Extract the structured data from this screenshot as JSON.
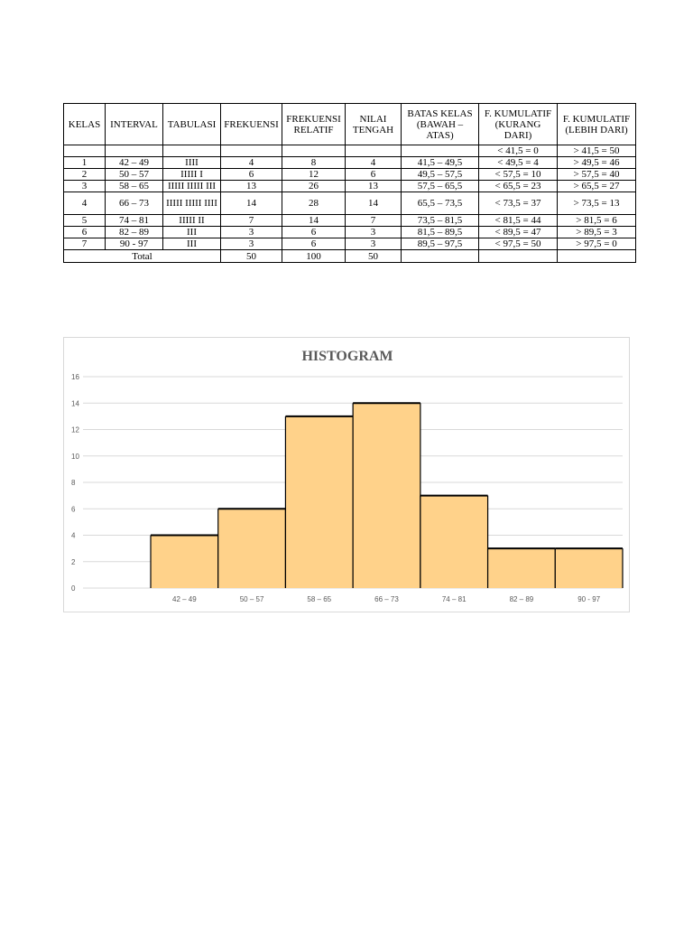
{
  "table": {
    "headers": [
      "KELAS",
      "INTERVAL",
      "TABULASI",
      "FREKUENSI",
      "FREKUENSI RELATIF",
      "NILAI TENGAH",
      "BATAS KELAS (BAWAH – ATAS)",
      "F. KUMULATIF (KURANG DARI)",
      "F. KUMULATIF (LEBIH DARI)"
    ],
    "pre_row": [
      "",
      "",
      "",
      "",
      "",
      "",
      "",
      "< 41,5 = 0",
      "> 41,5 = 50"
    ],
    "rows": [
      [
        "1",
        "42 – 49",
        "IIII",
        "4",
        "8",
        "4",
        "41,5 – 49,5",
        "< 49,5 = 4",
        "> 49,5 = 46"
      ],
      [
        "2",
        "50 – 57",
        "IIIII I",
        "6",
        "12",
        "6",
        "49,5 – 57,5",
        "< 57,5 = 10",
        "> 57,5 = 40"
      ],
      [
        "3",
        "58 – 65",
        "IIIII IIIII III",
        "13",
        "26",
        "13",
        "57,5 – 65,5",
        "< 65,5 = 23",
        "> 65,5 = 27"
      ],
      [
        "4",
        "66 – 73",
        "IIIII IIIII IIII",
        "14",
        "28",
        "14",
        "65,5 – 73,5",
        "< 73,5 = 37",
        "> 73,5 = 13"
      ],
      [
        "5",
        "74 – 81",
        "IIIII II",
        "7",
        "14",
        "7",
        "73,5 – 81,5",
        "< 81,5 = 44",
        "> 81,5 = 6"
      ],
      [
        "6",
        "82 – 89",
        "III",
        "3",
        "6",
        "3",
        "81,5 – 89,5",
        "< 89,5 = 47",
        "> 89,5 = 3"
      ],
      [
        "7",
        "90 - 97",
        "III",
        "3",
        "6",
        "3",
        "89,5 – 97,5",
        "< 97,5 = 50",
        "> 97,5 = 0"
      ]
    ],
    "total": {
      "label": "Total",
      "frekuensi": "50",
      "relatif": "100",
      "nilai_tengah": "50"
    }
  },
  "chart_data": {
    "type": "bar",
    "title": "HISTOGRAM",
    "categories": [
      "42 – 49",
      "50 – 57",
      "58 – 65",
      "66 – 73",
      "74 – 81",
      "82 – 89",
      "90 - 97"
    ],
    "values": [
      4,
      6,
      13,
      14,
      7,
      3,
      3
    ],
    "ylim": [
      0,
      16
    ],
    "yticks": [
      0,
      2,
      4,
      6,
      8,
      10,
      12,
      14,
      16
    ],
    "grid": true,
    "xlabel": "",
    "ylabel": "",
    "colors": {
      "bar_fill": "#ffd28a",
      "bar_edge": "#000000",
      "grid": "#d9d9d9",
      "text": "#595959"
    }
  }
}
